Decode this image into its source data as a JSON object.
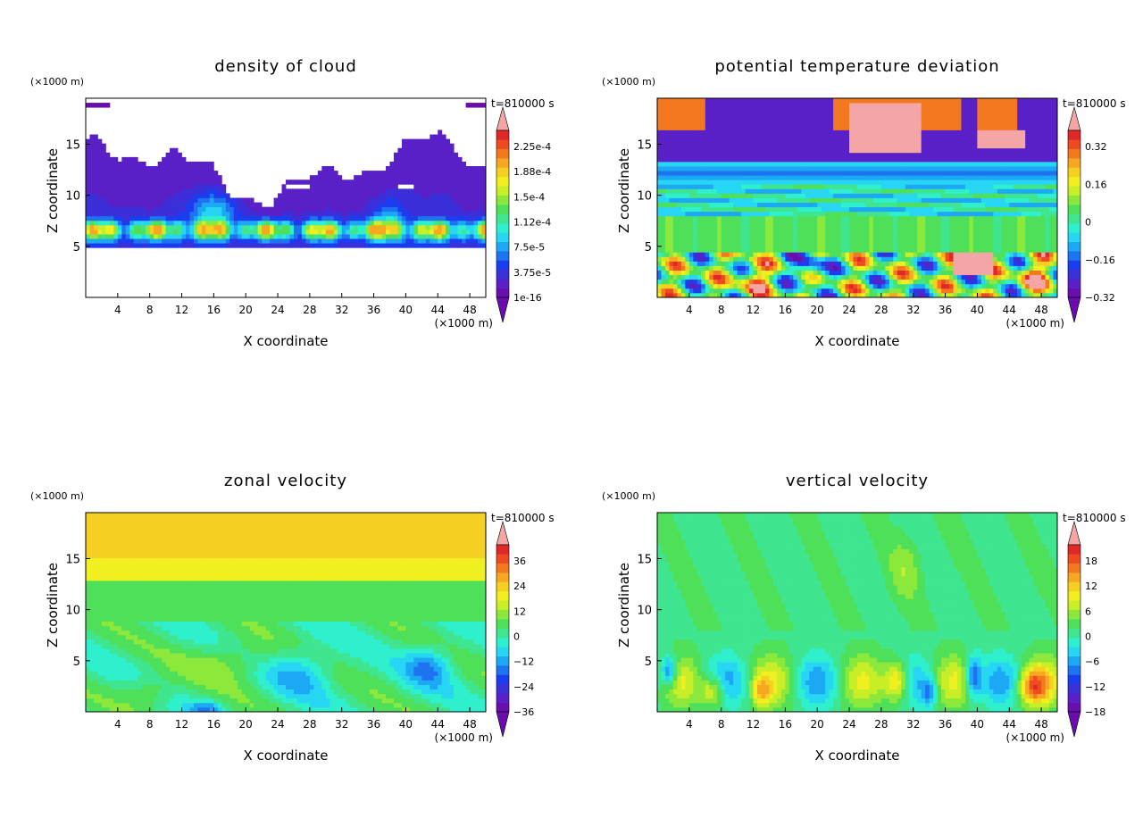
{
  "figure": {
    "background": "#ffffff"
  },
  "colorbar_palette": [
    "#6a0dad",
    "#5a20c8",
    "#3a2fd8",
    "#1c3cf0",
    "#1e73f0",
    "#1da8f5",
    "#27d6f2",
    "#2ef0cc",
    "#3fe58f",
    "#4fe05a",
    "#8ce83a",
    "#c8ee28",
    "#f0f020",
    "#f6d020",
    "#f6a820",
    "#f47820",
    "#ef4a20",
    "#e02828",
    "#f4a6a6"
  ],
  "chart_data": [
    {
      "id": "cloud",
      "type": "heatmap",
      "title": "density of cloud",
      "xlabel": "X coordinate",
      "ylabel": "Z coordinate",
      "x_unit": "(×1000 m)",
      "y_unit": "(×1000 m)",
      "time_label": "t=810000 s",
      "xlim": [
        0,
        50
      ],
      "ylim": [
        0,
        19.5
      ],
      "x_ticks": [
        "4",
        "8",
        "12",
        "16",
        "20",
        "24",
        "28",
        "32",
        "36",
        "40",
        "44",
        "48"
      ],
      "y_ticks": [
        "5",
        "10",
        "15"
      ],
      "colorbar_labels": [
        "2.25e-4",
        "1.88e-4",
        "1.5e-4",
        "1.12e-4",
        "7.5e-5",
        "3.75e-5",
        "1e-16"
      ]
    },
    {
      "id": "theta",
      "type": "heatmap",
      "title": "potential temperature deviation",
      "xlabel": "X coordinate",
      "ylabel": "Z coordinate",
      "x_unit": "(×1000 m)",
      "y_unit": "(×1000 m)",
      "time_label": "t=810000 s",
      "xlim": [
        0,
        50
      ],
      "ylim": [
        0,
        19.5
      ],
      "x_ticks": [
        "4",
        "8",
        "12",
        "16",
        "20",
        "24",
        "28",
        "32",
        "36",
        "40",
        "44",
        "48"
      ],
      "y_ticks": [
        "5",
        "10",
        "15"
      ],
      "colorbar_labels": [
        "0.32",
        "0.16",
        "0",
        "−0.16",
        "−0.32"
      ]
    },
    {
      "id": "zonal",
      "type": "heatmap",
      "title": "zonal velocity",
      "xlabel": "X coordinate",
      "ylabel": "Z coordinate",
      "x_unit": "(×1000 m)",
      "y_unit": "(×1000 m)",
      "time_label": "t=810000 s",
      "xlim": [
        0,
        50
      ],
      "ylim": [
        0,
        19.5
      ],
      "x_ticks": [
        "4",
        "8",
        "12",
        "16",
        "20",
        "24",
        "28",
        "32",
        "36",
        "40",
        "44",
        "48"
      ],
      "y_ticks": [
        "5",
        "10",
        "15"
      ],
      "colorbar_labels": [
        "36",
        "24",
        "12",
        "0",
        "−12",
        "−24",
        "−36"
      ]
    },
    {
      "id": "vertical",
      "type": "heatmap",
      "title": "vertical velocity",
      "xlabel": "X coordinate",
      "ylabel": "Z coordinate",
      "x_unit": "(×1000 m)",
      "y_unit": "(×1000 m)",
      "time_label": "t=810000 s",
      "xlim": [
        0,
        50
      ],
      "ylim": [
        0,
        19.5
      ],
      "x_ticks": [
        "4",
        "8",
        "12",
        "16",
        "20",
        "24",
        "28",
        "32",
        "36",
        "40",
        "44",
        "48"
      ],
      "y_ticks": [
        "5",
        "10",
        "15"
      ],
      "colorbar_labels": [
        "18",
        "12",
        "6",
        "0",
        "−6",
        "−12",
        "−18"
      ]
    }
  ]
}
